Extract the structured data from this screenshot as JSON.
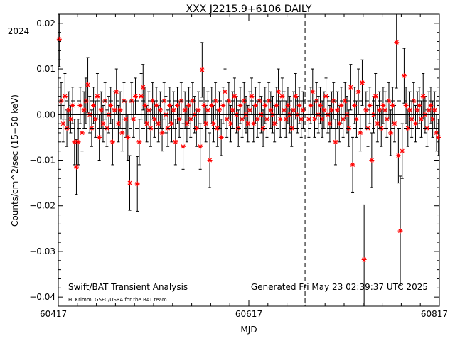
{
  "chart_data": {
    "type": "scatter",
    "title": "XXX J2215.9+6106 DAILY",
    "xlabel": "MJD",
    "ylabel": "Counts/cm^2/sec (15−50 keV)",
    "year_label": "2024",
    "xlim": [
      60417,
      60817
    ],
    "ylim": [
      -0.042,
      0.022
    ],
    "x_ticks": [
      60417,
      60617,
      60817
    ],
    "y_ticks": [
      0.02,
      0.01,
      0.0,
      -0.01,
      -0.02,
      -0.03,
      -0.04
    ],
    "y_tick_labels": [
      "0.02",
      "0.01",
      "0.00",
      "−0.01",
      "−0.02",
      "−0.03",
      "−0.04"
    ],
    "grid": false,
    "reference_lines": {
      "zero": 0.0,
      "upper": 0.003,
      "lower": -0.003
    },
    "year_boundary_mjd": 60676,
    "marker_color": "#ff0000",
    "errorbar_color": "#000000",
    "points": [
      [
        60418,
        0.0165,
        0.006
      ],
      [
        60420,
        0.003,
        0.004
      ],
      [
        60422,
        -0.002,
        0.004
      ],
      [
        60424,
        0.004,
        0.005
      ],
      [
        60426,
        -0.003,
        0.004
      ],
      [
        60428,
        0.001,
        0.004
      ],
      [
        60430,
        -0.001,
        0.003
      ],
      [
        60432,
        0.002,
        0.004
      ],
      [
        60434,
        -0.006,
        0.005
      ],
      [
        60436,
        -0.0115,
        0.006
      ],
      [
        60438,
        -0.006,
        0.005
      ],
      [
        60440,
        0.002,
        0.004
      ],
      [
        60442,
        -0.004,
        0.004
      ],
      [
        60444,
        0.001,
        0.004
      ],
      [
        60446,
        0.003,
        0.005
      ],
      [
        60448,
        0.0065,
        0.006
      ],
      [
        60450,
        0.0,
        0.004
      ],
      [
        60452,
        -0.003,
        0.004
      ],
      [
        60454,
        0.002,
        0.004
      ],
      [
        60456,
        -0.001,
        0.004
      ],
      [
        60458,
        0.004,
        0.005
      ],
      [
        60460,
        -0.005,
        0.005
      ],
      [
        60462,
        0.001,
        0.004
      ],
      [
        60464,
        -0.002,
        0.004
      ],
      [
        60466,
        0.003,
        0.004
      ],
      [
        60468,
        -0.003,
        0.004
      ],
      [
        60470,
        0.0,
        0.004
      ],
      [
        60472,
        0.002,
        0.004
      ],
      [
        60474,
        -0.006,
        0.005
      ],
      [
        60476,
        0.001,
        0.004
      ],
      [
        60478,
        0.005,
        0.005
      ],
      [
        60480,
        -0.002,
        0.004
      ],
      [
        60482,
        0.001,
        0.004
      ],
      [
        60484,
        -0.004,
        0.004
      ],
      [
        60486,
        0.003,
        0.004
      ],
      [
        60488,
        -0.001,
        0.004
      ],
      [
        60490,
        -0.005,
        0.005
      ],
      [
        60492,
        -0.015,
        0.006
      ],
      [
        60494,
        0.003,
        0.004
      ],
      [
        60496,
        -0.001,
        0.004
      ],
      [
        60498,
        0.004,
        0.004
      ],
      [
        60500,
        -0.0152,
        0.006
      ],
      [
        60502,
        -0.006,
        0.005
      ],
      [
        60504,
        0.004,
        0.005
      ],
      [
        60506,
        0.006,
        0.005
      ],
      [
        60508,
        0.002,
        0.004
      ],
      [
        60510,
        -0.002,
        0.004
      ],
      [
        60512,
        0.001,
        0.004
      ],
      [
        60514,
        -0.003,
        0.004
      ],
      [
        60516,
        0.003,
        0.004
      ],
      [
        60518,
        -0.001,
        0.004
      ],
      [
        60520,
        0.002,
        0.004
      ],
      [
        60522,
        -0.002,
        0.004
      ],
      [
        60524,
        0.001,
        0.004
      ],
      [
        60526,
        -0.004,
        0.004
      ],
      [
        60528,
        0.003,
        0.004
      ],
      [
        60530,
        0.0,
        0.004
      ],
      [
        60532,
        -0.003,
        0.004
      ],
      [
        60534,
        0.002,
        0.004
      ],
      [
        60536,
        -0.002,
        0.004
      ],
      [
        60538,
        0.001,
        0.004
      ],
      [
        60540,
        -0.006,
        0.005
      ],
      [
        60542,
        0.002,
        0.004
      ],
      [
        60544,
        -0.001,
        0.004
      ],
      [
        60546,
        0.003,
        0.004
      ],
      [
        60548,
        -0.007,
        0.005
      ],
      [
        60550,
        0.001,
        0.004
      ],
      [
        60552,
        -0.002,
        0.004
      ],
      [
        60554,
        0.002,
        0.004
      ],
      [
        60556,
        -0.001,
        0.004
      ],
      [
        60558,
        0.003,
        0.004
      ],
      [
        60560,
        0.0,
        0.004
      ],
      [
        60562,
        -0.003,
        0.004
      ],
      [
        60564,
        0.001,
        0.004
      ],
      [
        60566,
        -0.007,
        0.005
      ],
      [
        60568,
        0.0098,
        0.006
      ],
      [
        60570,
        0.002,
        0.004
      ],
      [
        60572,
        -0.002,
        0.004
      ],
      [
        60574,
        0.001,
        0.004
      ],
      [
        60576,
        -0.01,
        0.006
      ],
      [
        60578,
        0.002,
        0.004
      ],
      [
        60580,
        -0.002,
        0.004
      ],
      [
        60582,
        0.003,
        0.004
      ],
      [
        60584,
        -0.003,
        0.004
      ],
      [
        60586,
        0.001,
        0.004
      ],
      [
        60588,
        -0.005,
        0.004
      ],
      [
        60590,
        0.002,
        0.004
      ],
      [
        60592,
        0.005,
        0.005
      ],
      [
        60594,
        -0.001,
        0.004
      ],
      [
        60596,
        0.003,
        0.004
      ],
      [
        60598,
        -0.002,
        0.004
      ],
      [
        60600,
        0.001,
        0.004
      ],
      [
        60602,
        0.004,
        0.004
      ],
      [
        60604,
        0.0,
        0.004
      ],
      [
        60606,
        -0.003,
        0.004
      ],
      [
        60608,
        0.002,
        0.004
      ],
      [
        60610,
        -0.001,
        0.004
      ],
      [
        60612,
        0.003,
        0.004
      ],
      [
        60614,
        0.0,
        0.004
      ],
      [
        60616,
        -0.002,
        0.004
      ],
      [
        60618,
        0.001,
        0.004
      ],
      [
        60620,
        0.004,
        0.004
      ],
      [
        60622,
        -0.002,
        0.004
      ],
      [
        60624,
        0.002,
        0.004
      ],
      [
        60626,
        -0.001,
        0.004
      ],
      [
        60628,
        0.003,
        0.004
      ],
      [
        60630,
        0.0,
        0.004
      ],
      [
        60632,
        -0.003,
        0.004
      ],
      [
        60634,
        0.002,
        0.004
      ],
      [
        60636,
        -0.001,
        0.004
      ],
      [
        60638,
        0.003,
        0.004
      ],
      [
        60640,
        0.001,
        0.004
      ],
      [
        60642,
        0.0,
        0.004
      ],
      [
        60644,
        -0.002,
        0.004
      ],
      [
        60646,
        0.002,
        0.004
      ],
      [
        60648,
        0.005,
        0.005
      ],
      [
        60650,
        -0.001,
        0.004
      ],
      [
        60652,
        0.004,
        0.004
      ],
      [
        60654,
        0.001,
        0.004
      ],
      [
        60656,
        -0.001,
        0.004
      ],
      [
        60658,
        0.002,
        0.004
      ],
      [
        60660,
        0.0,
        0.004
      ],
      [
        60662,
        -0.003,
        0.004
      ],
      [
        60664,
        0.001,
        0.004
      ],
      [
        60666,
        0.004,
        0.005
      ],
      [
        60668,
        0.0,
        0.004
      ],
      [
        60670,
        0.002,
        0.004
      ],
      [
        60672,
        -0.001,
        0.004
      ],
      [
        60674,
        0.001,
        0.004
      ],
      [
        60680,
        -0.001,
        0.004
      ],
      [
        60682,
        0.002,
        0.004
      ],
      [
        60684,
        0.005,
        0.005
      ],
      [
        60686,
        -0.001,
        0.004
      ],
      [
        60688,
        0.003,
        0.004
      ],
      [
        60690,
        0.0,
        0.004
      ],
      [
        60692,
        0.002,
        0.004
      ],
      [
        60694,
        -0.001,
        0.004
      ],
      [
        60696,
        0.001,
        0.004
      ],
      [
        60698,
        0.004,
        0.004
      ],
      [
        60700,
        0.0,
        0.004
      ],
      [
        60702,
        -0.002,
        0.004
      ],
      [
        60704,
        0.001,
        0.004
      ],
      [
        60706,
        0.003,
        0.004
      ],
      [
        60708,
        -0.006,
        0.005
      ],
      [
        60710,
        0.001,
        0.004
      ],
      [
        60712,
        -0.002,
        0.004
      ],
      [
        60714,
        0.002,
        0.004
      ],
      [
        60716,
        -0.001,
        0.004
      ],
      [
        60718,
        0.003,
        0.004
      ],
      [
        60720,
        0.0,
        0.004
      ],
      [
        60722,
        -0.003,
        0.004
      ],
      [
        60724,
        0.006,
        0.005
      ],
      [
        60726,
        -0.011,
        0.006
      ],
      [
        60728,
        0.002,
        0.004
      ],
      [
        60730,
        -0.001,
        0.004
      ],
      [
        60732,
        0.005,
        0.005
      ],
      [
        60734,
        -0.004,
        0.004
      ],
      [
        60736,
        0.007,
        0.005
      ],
      [
        60738,
        -0.0318,
        0.012
      ],
      [
        60740,
        0.001,
        0.004
      ],
      [
        60742,
        -0.003,
        0.004
      ],
      [
        60744,
        0.002,
        0.004
      ],
      [
        60746,
        -0.01,
        0.006
      ],
      [
        60748,
        0.0,
        0.004
      ],
      [
        60750,
        0.004,
        0.005
      ],
      [
        60752,
        -0.002,
        0.004
      ],
      [
        60754,
        0.001,
        0.004
      ],
      [
        60756,
        -0.003,
        0.004
      ],
      [
        60758,
        0.002,
        0.004
      ],
      [
        60760,
        0.001,
        0.004
      ],
      [
        60762,
        -0.001,
        0.004
      ],
      [
        60764,
        0.003,
        0.004
      ],
      [
        60766,
        -0.004,
        0.005
      ],
      [
        60768,
        0.002,
        0.004
      ],
      [
        60770,
        -0.002,
        0.004
      ],
      [
        60772,
        0.0158,
        0.01
      ],
      [
        60774,
        -0.009,
        0.006
      ],
      [
        60776,
        -0.0255,
        0.012
      ],
      [
        60778,
        -0.008,
        0.006
      ],
      [
        60780,
        0.0085,
        0.006
      ],
      [
        60782,
        0.002,
        0.004
      ],
      [
        60784,
        -0.003,
        0.004
      ],
      [
        60786,
        0.001,
        0.004
      ],
      [
        60788,
        -0.001,
        0.004
      ],
      [
        60790,
        0.003,
        0.004
      ],
      [
        60792,
        -0.002,
        0.004
      ],
      [
        60794,
        0.001,
        0.004
      ],
      [
        60796,
        0.002,
        0.004
      ],
      [
        60798,
        -0.001,
        0.004
      ],
      [
        60800,
        0.004,
        0.005
      ],
      [
        60802,
        0.0,
        0.004
      ],
      [
        60804,
        -0.003,
        0.004
      ],
      [
        60806,
        0.001,
        0.004
      ],
      [
        60808,
        0.002,
        0.004
      ],
      [
        60810,
        -0.001,
        0.004
      ],
      [
        60812,
        0.001,
        0.004
      ],
      [
        60814,
        -0.004,
        0.004
      ],
      [
        60816,
        -0.005,
        0.004
      ]
    ]
  },
  "footer": {
    "left_title": "Swift/BAT Transient Analysis",
    "left_credit": "H. Krimm, GSFC/USRA for the BAT team",
    "generated": "Generated Fri May 23 02:39:37 UTC 2025"
  }
}
